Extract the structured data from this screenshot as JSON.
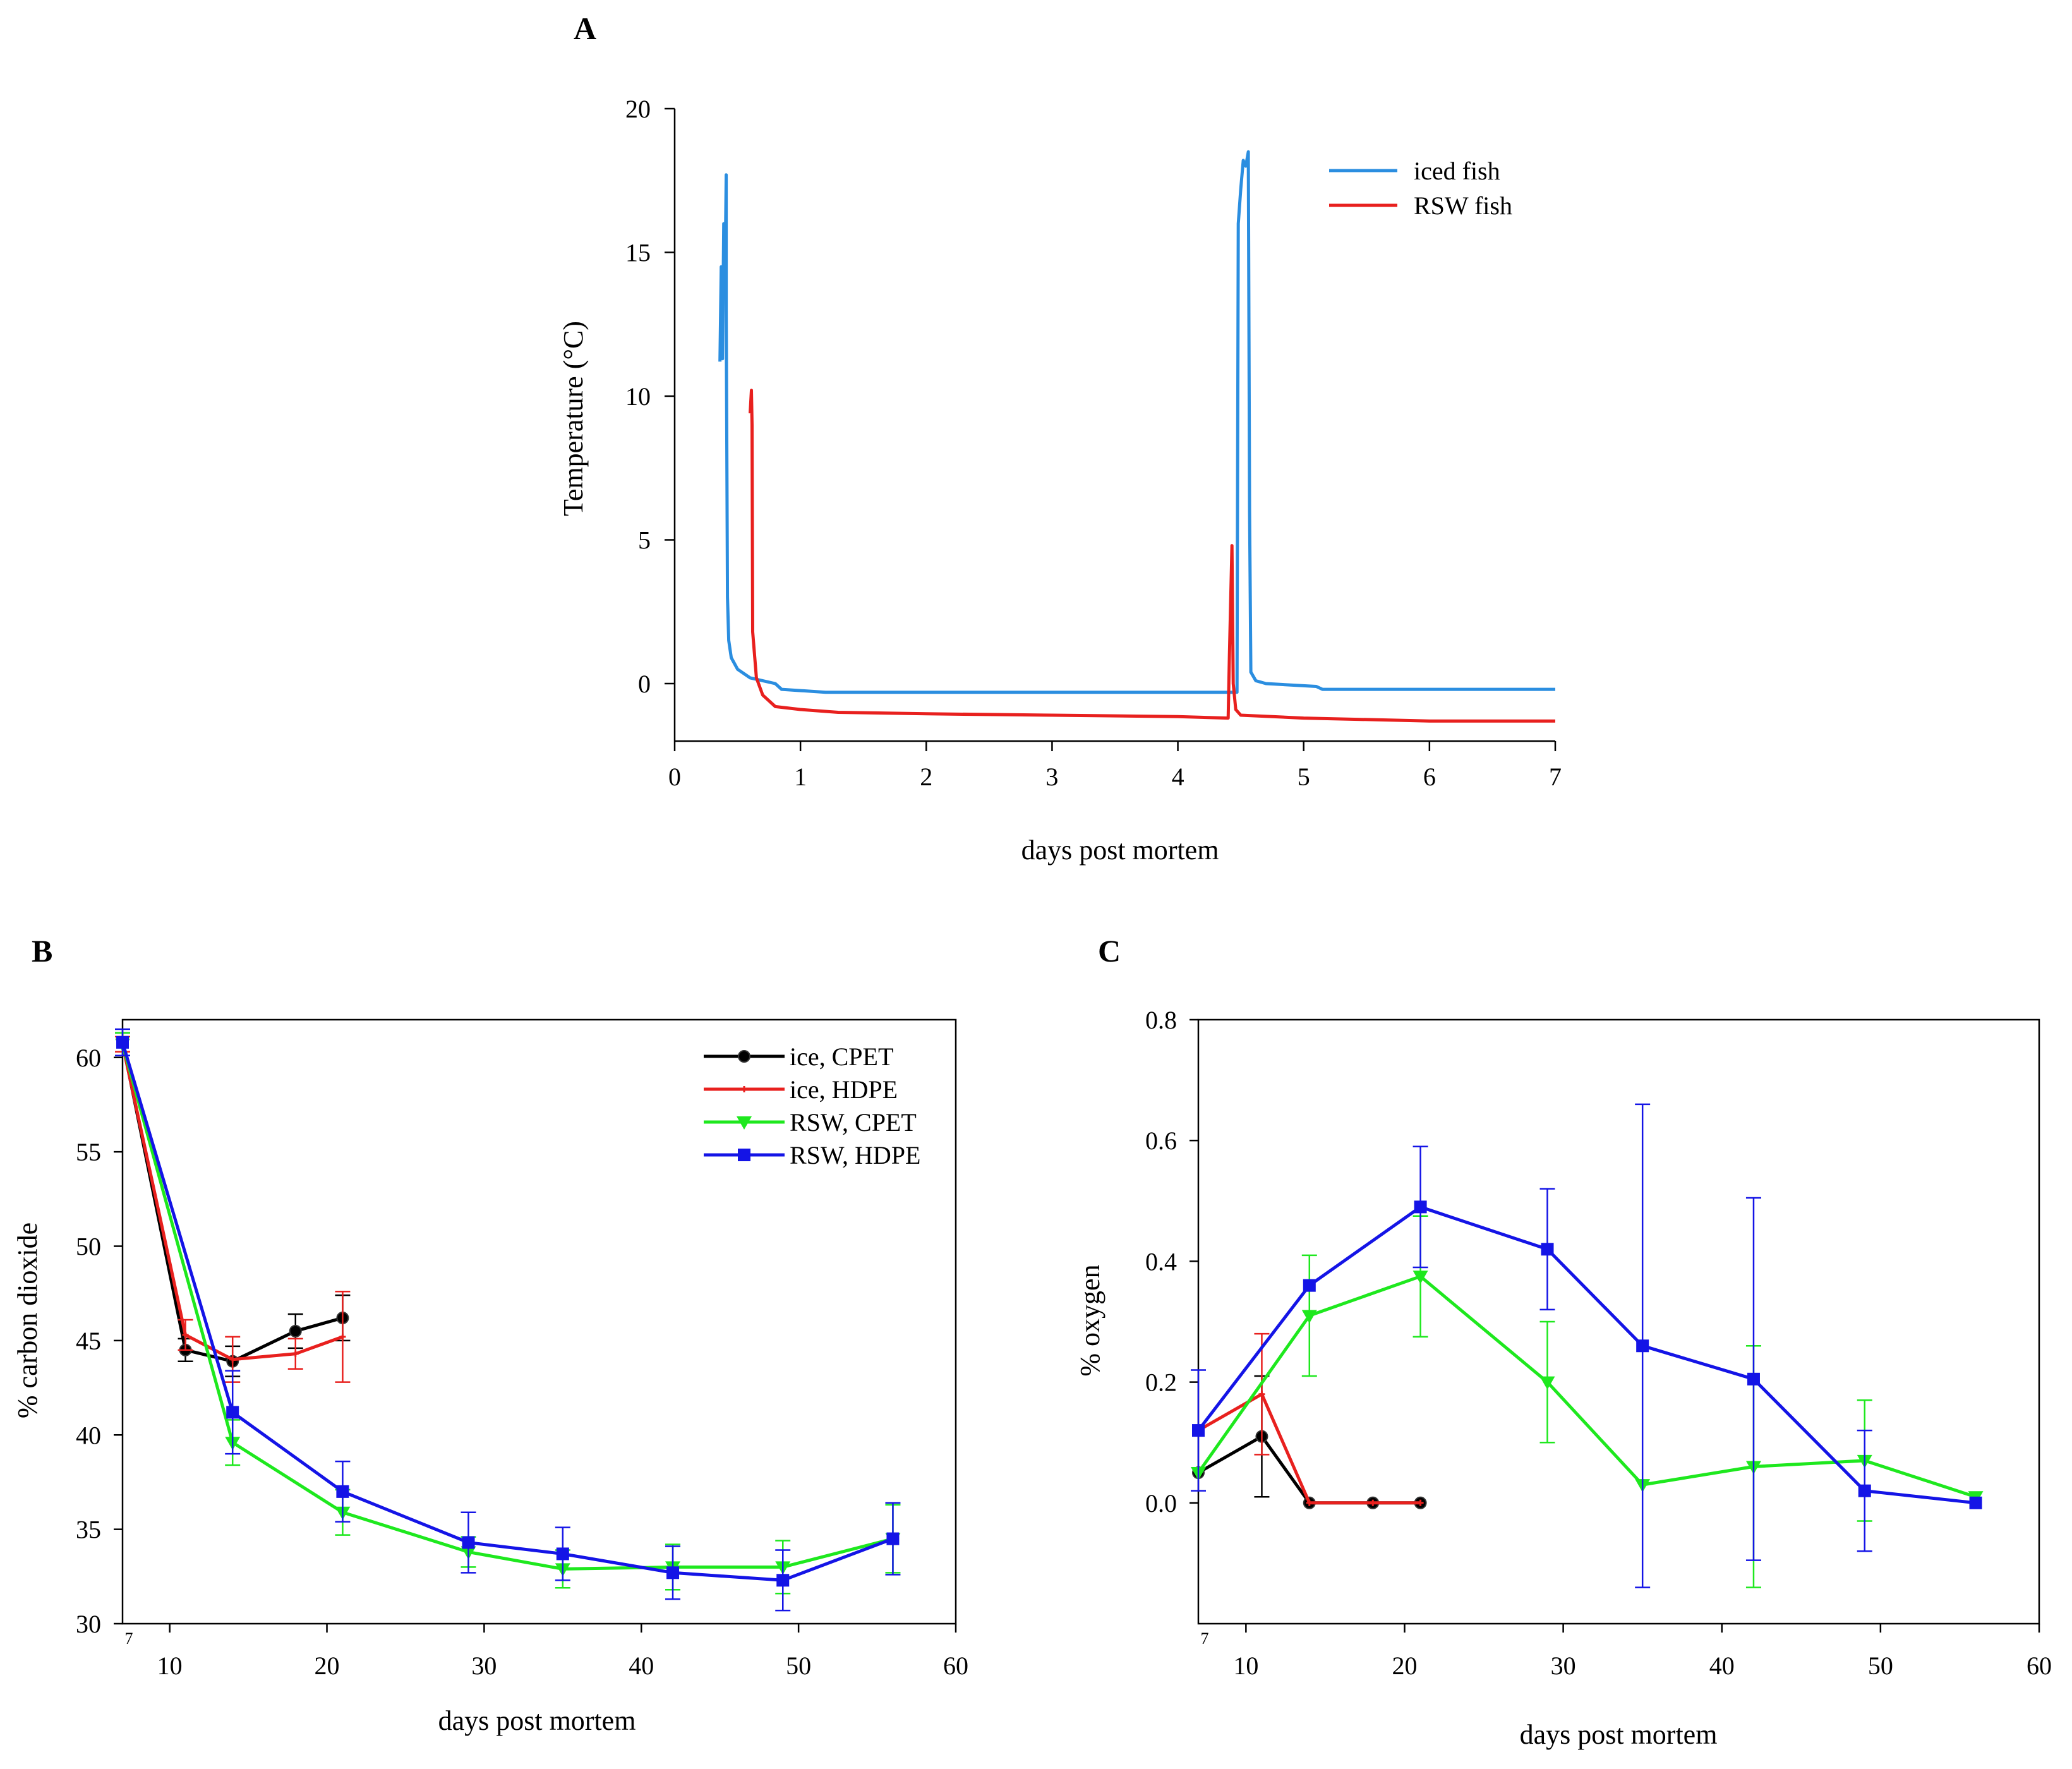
{
  "colors": {
    "iced": "#2b8ee0",
    "rsw": "#e8201e",
    "black": "#000000",
    "red": "#e8201e",
    "green": "#1ee81e",
    "blue": "#1414e6"
  },
  "chart_data": [
    {
      "panel": "A",
      "type": "line",
      "xlabel": "days post mortem",
      "ylabel": "Temperature (°C)",
      "xlim": [
        0,
        7
      ],
      "ylim": [
        -2,
        20
      ],
      "xticks": [
        "0",
        "1",
        "2",
        "3",
        "4",
        "5",
        "6",
        "7"
      ],
      "yticks": [
        "0",
        "5",
        "10",
        "15",
        "20"
      ],
      "legend_position": "top-right",
      "series": [
        {
          "name": "iced fish",
          "color": "#2b8ee0",
          "points": [
            [
              0.36,
              11.2
            ],
            [
              0.37,
              14.5
            ],
            [
              0.38,
              11.3
            ],
            [
              0.39,
              16.0
            ],
            [
              0.4,
              14.0
            ],
            [
              0.41,
              17.7
            ],
            [
              0.41,
              13.0
            ],
            [
              0.42,
              3.0
            ],
            [
              0.43,
              1.5
            ],
            [
              0.45,
              0.9
            ],
            [
              0.5,
              0.5
            ],
            [
              0.6,
              0.2
            ],
            [
              0.8,
              0.0
            ],
            [
              0.85,
              -0.2
            ],
            [
              1.2,
              -0.3
            ],
            [
              2.0,
              -0.3
            ],
            [
              3.0,
              -0.3
            ],
            [
              4.0,
              -0.3
            ],
            [
              4.4,
              -0.3
            ],
            [
              4.47,
              -0.3
            ],
            [
              4.48,
              16.0
            ],
            [
              4.5,
              17.2
            ],
            [
              4.52,
              18.2
            ],
            [
              4.54,
              18.0
            ],
            [
              4.56,
              18.5
            ],
            [
              4.57,
              6.0
            ],
            [
              4.58,
              0.4
            ],
            [
              4.62,
              0.1
            ],
            [
              4.7,
              0.0
            ],
            [
              5.1,
              -0.1
            ],
            [
              5.15,
              -0.2
            ],
            [
              6.0,
              -0.2
            ],
            [
              7.0,
              -0.2
            ]
          ]
        },
        {
          "name": "RSW fish",
          "color": "#e8201e",
          "points": [
            [
              0.6,
              9.4
            ],
            [
              0.61,
              10.2
            ],
            [
              0.615,
              9.0
            ],
            [
              0.62,
              1.8
            ],
            [
              0.65,
              0.2
            ],
            [
              0.7,
              -0.4
            ],
            [
              0.8,
              -0.8
            ],
            [
              1.0,
              -0.9
            ],
            [
              1.3,
              -1.0
            ],
            [
              2.0,
              -1.05
            ],
            [
              3.0,
              -1.1
            ],
            [
              4.0,
              -1.15
            ],
            [
              4.4,
              -1.2
            ],
            [
              4.41,
              1.0
            ],
            [
              4.43,
              4.8
            ],
            [
              4.44,
              0.0
            ],
            [
              4.46,
              -0.9
            ],
            [
              4.5,
              -1.1
            ],
            [
              5.0,
              -1.2
            ],
            [
              6.0,
              -1.3
            ],
            [
              7.0,
              -1.3
            ]
          ]
        }
      ]
    },
    {
      "panel": "B",
      "type": "line",
      "xlabel": "days post mortem",
      "ylabel": "% carbon dioxide",
      "xlim": [
        7,
        60
      ],
      "ylim": [
        30,
        62
      ],
      "xticks": [
        "7",
        "10",
        "20",
        "30",
        "40",
        "50",
        "60"
      ],
      "yticks": [
        "30",
        "35",
        "40",
        "45",
        "50",
        "55",
        "60"
      ],
      "legend_position": "top-right",
      "series": [
        {
          "name": "ice, CPET",
          "color": "#000000",
          "marker": "circle",
          "x": [
            7,
            11,
            14,
            18,
            21
          ],
          "y": [
            60.8,
            44.5,
            43.9,
            45.5,
            46.2
          ],
          "err": [
            0.5,
            0.6,
            0.8,
            0.9,
            1.2
          ]
        },
        {
          "name": "ice, HDPE",
          "color": "#e8201e",
          "marker": "plus",
          "x": [
            7,
            11,
            14,
            18,
            21
          ],
          "y": [
            60.7,
            45.3,
            44.0,
            44.3,
            45.2
          ],
          "err": [
            0.4,
            0.8,
            1.2,
            0.8,
            2.4
          ]
        },
        {
          "name": "RSW, CPET",
          "color": "#1ee81e",
          "marker": "triangle",
          "x": [
            7,
            14,
            21,
            29,
            35,
            42,
            49,
            56
          ],
          "y": [
            60.7,
            39.6,
            35.9,
            33.8,
            32.9,
            33.0,
            33.0,
            34.5
          ],
          "err": [
            0.6,
            1.2,
            1.2,
            0.8,
            1.0,
            1.2,
            1.4,
            1.8
          ]
        },
        {
          "name": "RSW, HDPE",
          "color": "#1414e6",
          "marker": "square",
          "x": [
            7,
            14,
            21,
            29,
            35,
            42,
            49,
            56
          ],
          "y": [
            60.8,
            41.2,
            37.0,
            34.3,
            33.7,
            32.7,
            32.3,
            34.5
          ],
          "err": [
            0.7,
            2.2,
            1.6,
            1.6,
            1.4,
            1.4,
            1.6,
            1.9
          ]
        }
      ]
    },
    {
      "panel": "C",
      "type": "line",
      "xlabel": "days post mortem",
      "ylabel": "% oxygen",
      "xlim": [
        7,
        60
      ],
      "ylim": [
        -0.2,
        0.8
      ],
      "xticks": [
        "7",
        "10",
        "20",
        "30",
        "40",
        "50",
        "60"
      ],
      "yticks": [
        "0.0",
        "0.2",
        "0.4",
        "0.6",
        "0.8"
      ],
      "series": [
        {
          "name": "ice, CPET",
          "color": "#000000",
          "marker": "circle",
          "x": [
            7,
            11,
            14,
            18,
            21
          ],
          "y": [
            0.05,
            0.11,
            0.0,
            0.0,
            0.0
          ],
          "err": [
            0.0,
            0.1,
            0.0,
            0.0,
            0.0
          ]
        },
        {
          "name": "ice, HDPE",
          "color": "#e8201e",
          "marker": "plus",
          "x": [
            7,
            11,
            14,
            18,
            21
          ],
          "y": [
            0.12,
            0.18,
            0.0,
            0.0,
            0.0
          ],
          "err": [
            0.0,
            0.1,
            0.0,
            0.0,
            0.0
          ]
        },
        {
          "name": "RSW, CPET",
          "color": "#1ee81e",
          "marker": "triangle",
          "x": [
            7,
            14,
            21,
            29,
            35,
            42,
            49,
            56
          ],
          "y": [
            0.05,
            0.31,
            0.375,
            0.2,
            0.03,
            0.06,
            0.07,
            0.01
          ],
          "err": [
            0.0,
            0.1,
            0.1,
            0.1,
            0.0,
            0.2,
            0.1,
            0.0
          ]
        },
        {
          "name": "RSW, HDPE",
          "color": "#1414e6",
          "marker": "square",
          "x": [
            7,
            14,
            21,
            29,
            35,
            42,
            49,
            56
          ],
          "y": [
            0.12,
            0.36,
            0.49,
            0.42,
            0.26,
            0.205,
            0.02,
            0.0
          ],
          "err": [
            0.1,
            0.0,
            0.1,
            0.1,
            0.4,
            0.3,
            0.1,
            0.0
          ]
        }
      ]
    }
  ]
}
